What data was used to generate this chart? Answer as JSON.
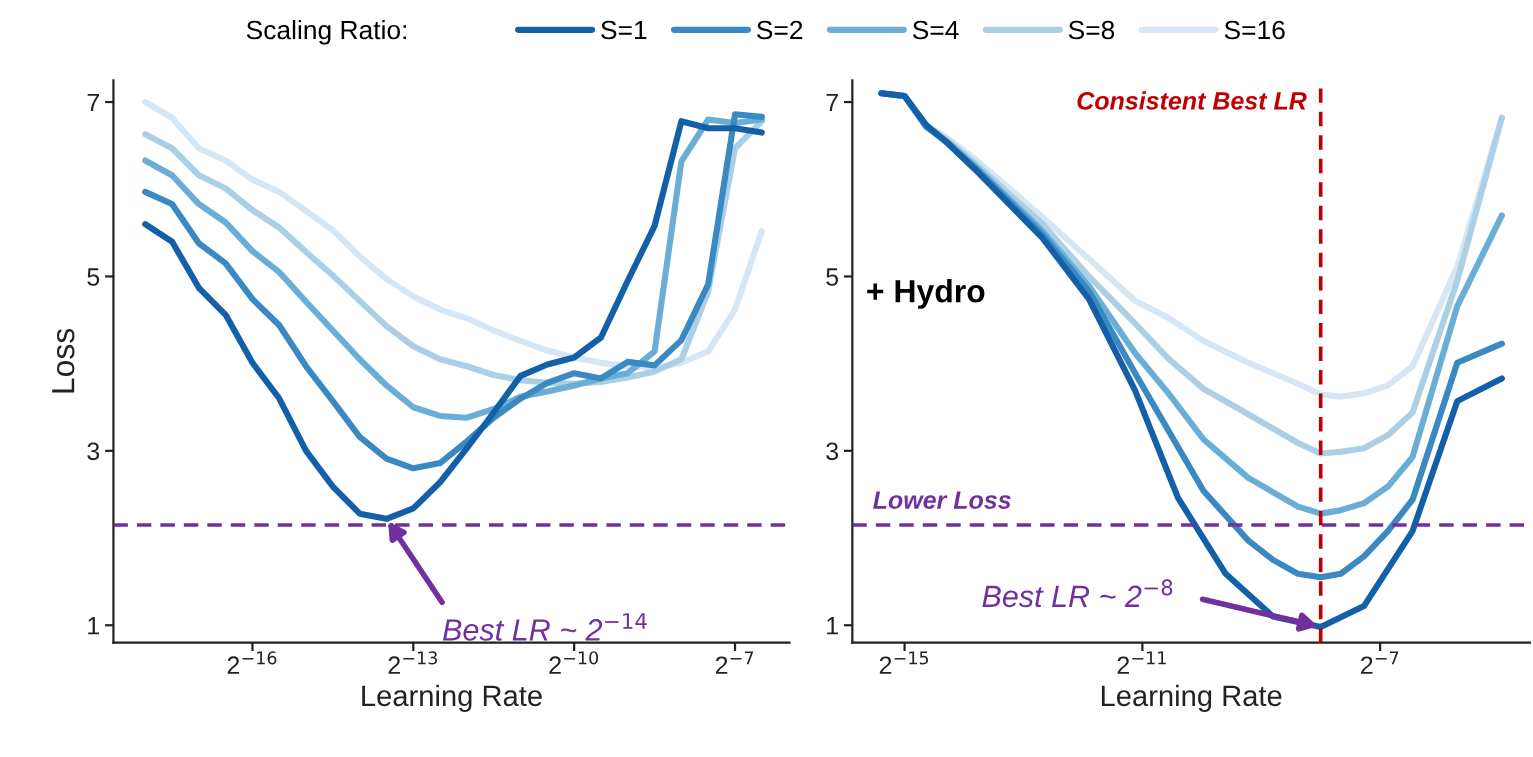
{
  "chart_data": [
    {
      "type": "line",
      "xlabel": "Learning Rate",
      "ylabel": "Loss",
      "legend_title": "Scaling Ratio:",
      "legend": "top",
      "log": "x",
      "grid": false,
      "line_style": "solid",
      "marker": "none",
      "xlim": [
        2.53e-06,
        0.0158
      ],
      "ylim": [
        0.8,
        7.25
      ],
      "xticks": [
        {
          "value": 1.52587890625e-05,
          "label": "2$^{−16}$"
        },
        {
          "value": 0.0001220703125,
          "label": "2$^{−13}$"
        },
        {
          "value": 0.0009765625,
          "label": "2$^{−10}$"
        },
        {
          "value": 0.0078125,
          "label": "2$^{−7}$"
        }
      ],
      "yticks": [
        1,
        3,
        5,
        7
      ],
      "x": [
        3.815e-06,
        5.395e-06,
        7.629e-06,
        1.079e-05,
        1.526e-05,
        2.158e-05,
        3.052e-05,
        4.316e-05,
        6.104e-05,
        8.632e-05,
        0.0001221,
        0.0001726,
        0.0002441,
        0.0003453,
        0.0004883,
        0.0006905,
        0.0009766,
        0.001381,
        0.001953,
        0.002762,
        0.003906,
        0.005524,
        0.0078125,
        0.01105
      ],
      "series": [
        {
          "name": "S=1",
          "color": "#1460a8",
          "values": [
            5.6,
            5.4,
            4.87,
            4.56,
            4.01,
            3.6,
            3.0,
            2.59,
            2.28,
            2.22,
            2.34,
            2.64,
            3.03,
            3.44,
            3.86,
            3.99,
            4.07,
            4.3,
            4.95,
            5.58,
            6.78,
            6.7,
            6.7,
            6.65
          ]
        },
        {
          "name": "S=2",
          "color": "#3a89c3",
          "values": [
            5.97,
            5.83,
            5.38,
            5.15,
            4.74,
            4.44,
            3.97,
            3.57,
            3.16,
            2.91,
            2.8,
            2.86,
            3.11,
            3.38,
            3.6,
            3.78,
            3.89,
            3.83,
            4.02,
            3.98,
            4.27,
            4.91,
            6.86,
            6.83
          ]
        },
        {
          "name": "S=4",
          "color": "#6aaed6",
          "values": [
            6.33,
            6.16,
            5.83,
            5.62,
            5.29,
            5.05,
            4.71,
            4.38,
            4.05,
            3.75,
            3.5,
            3.4,
            3.38,
            3.48,
            3.62,
            3.68,
            3.75,
            3.83,
            3.89,
            4.14,
            6.32,
            6.8,
            6.76,
            6.8
          ]
        },
        {
          "name": "S=8",
          "color": "#abd0e6",
          "values": [
            6.63,
            6.47,
            6.16,
            6.01,
            5.76,
            5.56,
            5.28,
            5.01,
            4.72,
            4.43,
            4.2,
            4.05,
            3.97,
            3.87,
            3.81,
            3.78,
            3.77,
            3.79,
            3.84,
            3.91,
            4.05,
            4.83,
            6.47,
            6.78
          ]
        },
        {
          "name": "S=16",
          "color": "#d6e6f4",
          "values": [
            7.0,
            6.82,
            6.47,
            6.33,
            6.11,
            5.97,
            5.75,
            5.53,
            5.23,
            4.97,
            4.77,
            4.62,
            4.52,
            4.38,
            4.26,
            4.15,
            4.07,
            4.01,
            3.97,
            3.95,
            4.01,
            4.14,
            4.62,
            5.52
          ]
        }
      ],
      "ref_lines": [
        {
          "axis": "y",
          "value": 2.15,
          "color": "#7030a0",
          "line_style": "dashed"
        }
      ],
      "annotations": [
        {
          "text": "Best LR ~ 2$^{−14}$",
          "x": 8.632e-05,
          "y": 2.22
        }
      ]
    },
    {
      "type": "line",
      "xlabel": "Learning Rate",
      "log": "x",
      "grid": false,
      "line_style": "solid",
      "marker": "none",
      "xlim": [
        1.66e-05,
        0.0448
      ],
      "ylim": [
        0.8,
        7.25
      ],
      "xticks": [
        {
          "value": 3.0517578125e-05,
          "label": "2$^{−15}$"
        },
        {
          "value": 0.00048828125,
          "label": "2$^{−11}$"
        },
        {
          "value": 0.0078125,
          "label": "2$^{−7}$"
        }
      ],
      "yticks": [
        1,
        3,
        5,
        7
      ],
      "series": [
        {
          "color": "#1460a8",
          "x": [
            2.33e-05,
            3.05e-05,
            3.92e-05,
            4.92e-05,
            6.92e-05,
            0.0001525,
            0.000262,
            0.000449,
            0.00074,
            0.00129,
            0.00224,
            0.003906,
            0.00647,
            0.0114,
            0.0192,
            0.0323
          ],
          "values": [
            7.1,
            7.07,
            6.74,
            6.55,
            6.23,
            5.44,
            4.74,
            3.69,
            2.46,
            1.59,
            1.1,
            0.98,
            1.22,
            2.08,
            3.57,
            3.83
          ]
        },
        {
          "color": "#3a89c3",
          "x": [
            2.33e-05,
            3.05e-05,
            3.92e-05,
            4.92e-05,
            6.92e-05,
            0.0001525,
            0.000262,
            0.000449,
            0.000667,
            0.000997,
            0.00168,
            0.00224,
            0.003,
            0.003906,
            0.00494,
            0.00647,
            0.00855,
            0.0114,
            0.0192,
            0.0323
          ],
          "values": [
            7.1,
            7.07,
            6.72,
            6.55,
            6.25,
            5.48,
            4.83,
            3.89,
            3.22,
            2.54,
            1.97,
            1.75,
            1.59,
            1.55,
            1.59,
            1.79,
            2.08,
            2.44,
            4.01,
            4.23
          ]
        },
        {
          "color": "#6aaed6",
          "x": [
            2.33e-05,
            3.05e-05,
            3.92e-05,
            4.92e-05,
            6.92e-05,
            0.0001525,
            0.000262,
            0.000449,
            0.000667,
            0.000997,
            0.00168,
            0.003,
            0.003906,
            0.00494,
            0.00647,
            0.00855,
            0.0114,
            0.0192,
            0.0323
          ],
          "values": [
            7.1,
            7.07,
            6.72,
            6.56,
            6.27,
            5.52,
            4.89,
            4.12,
            3.65,
            3.13,
            2.69,
            2.36,
            2.28,
            2.32,
            2.4,
            2.59,
            2.93,
            4.66,
            5.7
          ]
        },
        {
          "color": "#abd0e6",
          "x": [
            2.33e-05,
            3.05e-05,
            3.92e-05,
            4.92e-05,
            6.92e-05,
            0.0001525,
            0.000262,
            0.000449,
            0.000667,
            0.000997,
            0.00168,
            0.003,
            0.003906,
            0.00494,
            0.00647,
            0.00855,
            0.0114,
            0.0192,
            0.0323
          ],
          "values": [
            7.1,
            7.07,
            6.73,
            6.58,
            6.3,
            5.6,
            5.0,
            4.46,
            4.05,
            3.71,
            3.42,
            3.09,
            2.97,
            2.99,
            3.03,
            3.18,
            3.44,
            4.95,
            6.82
          ]
        },
        {
          "color": "#d6e6f4",
          "x": [
            2.33e-05,
            3.05e-05,
            3.92e-05,
            4.92e-05,
            6.92e-05,
            0.0001525,
            0.000262,
            0.000449,
            0.000667,
            0.000997,
            0.00168,
            0.003,
            0.003906,
            0.00494,
            0.00647,
            0.00855,
            0.0114,
            0.0192,
            0.0323
          ],
          "values": [
            7.1,
            7.07,
            6.74,
            6.6,
            6.35,
            5.68,
            5.2,
            4.72,
            4.52,
            4.26,
            4.01,
            3.77,
            3.65,
            3.62,
            3.66,
            3.75,
            3.97,
            5.11,
            6.82
          ]
        }
      ],
      "ref_lines": [
        {
          "axis": "y",
          "value": 2.15,
          "label": "Lower Loss",
          "color": "#7030a0",
          "line_style": "dashed"
        },
        {
          "axis": "x",
          "value": 0.00390625,
          "label": "Consistent Best LR",
          "color": "#c00000",
          "line_style": "dashed"
        }
      ],
      "annotations": [
        {
          "text": "Best LR ~ 2$^{−8}$",
          "x": 0.00390625,
          "y": 0.98
        },
        "+ Hydro"
      ]
    }
  ]
}
